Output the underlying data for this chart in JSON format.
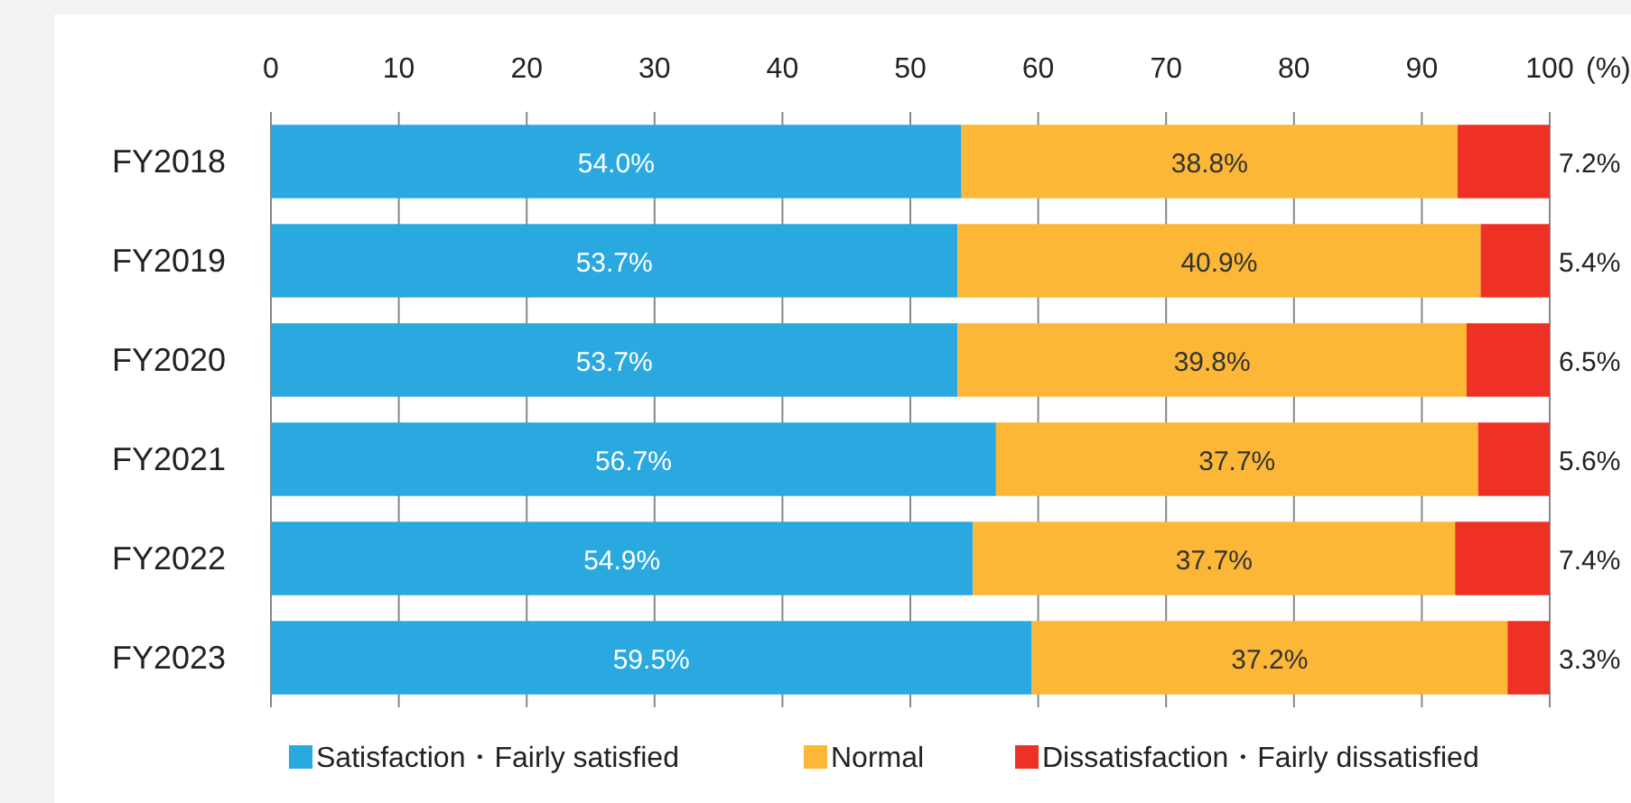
{
  "chart_data": {
    "type": "bar",
    "orientation": "horizontal",
    "stacked": true,
    "xlabel": "(%)",
    "categories": [
      "FY2018",
      "FY2019",
      "FY2020",
      "FY2021",
      "FY2022",
      "FY2023"
    ],
    "series": [
      {
        "name": "Satisfaction・Fairly satisfied",
        "color": "#29a9e0",
        "values": [
          54.0,
          53.7,
          53.7,
          56.7,
          54.9,
          59.5
        ],
        "value_labels": [
          "54.0%",
          "53.7%",
          "53.7%",
          "56.7%",
          "54.9%",
          "59.5%"
        ]
      },
      {
        "name": "Normal",
        "color": "#fbb735",
        "values": [
          38.8,
          40.9,
          39.8,
          37.7,
          37.7,
          37.2
        ],
        "value_labels": [
          "38.8%",
          "40.9%",
          "39.8%",
          "37.7%",
          "37.7%",
          "37.2%"
        ]
      },
      {
        "name": "Dissatisfaction・Fairly dissatisfied",
        "color": "#ee3124",
        "values": [
          7.2,
          5.4,
          6.5,
          5.6,
          7.4,
          3.3
        ],
        "value_labels": [
          "7.2%",
          "5.4%",
          "6.5%",
          "5.6%",
          "7.4%",
          "3.3%"
        ]
      }
    ],
    "xlim": [
      0,
      100
    ],
    "xticks": [
      0,
      10,
      20,
      30,
      40,
      50,
      60,
      70,
      80,
      90,
      100
    ],
    "grid": "x",
    "legend": "bottom"
  }
}
